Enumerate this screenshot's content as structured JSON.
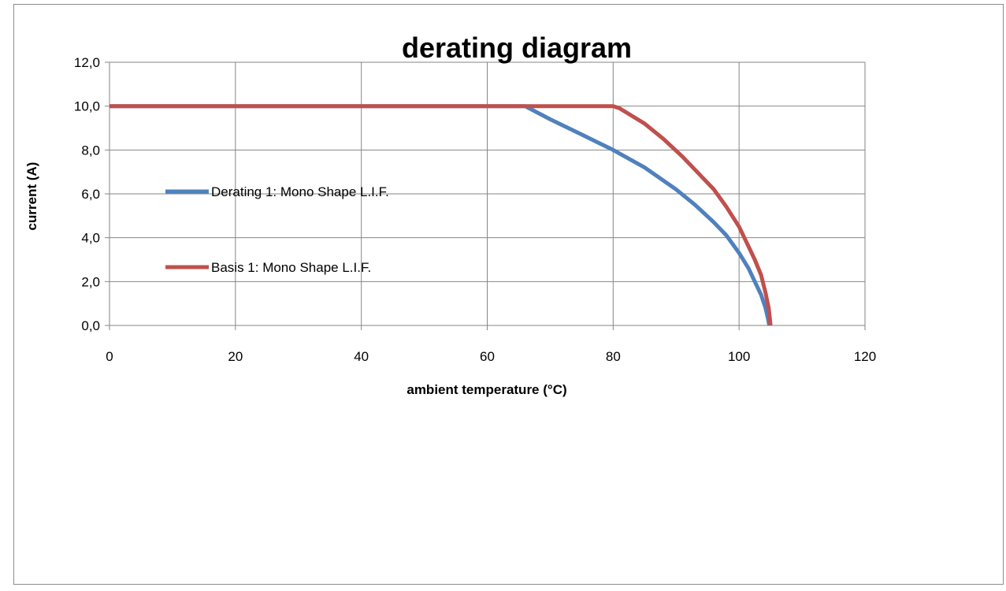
{
  "chart_data": {
    "type": "line",
    "title": "derating diagram",
    "xlabel": "ambient temperature (°C)",
    "ylabel": "current (A)",
    "xlim": [
      0,
      120
    ],
    "ylim": [
      0,
      12
    ],
    "x_ticks": [
      0,
      20,
      40,
      60,
      80,
      100,
      120
    ],
    "x_tick_labels": [
      "0",
      "20",
      "40",
      "60",
      "80",
      "100",
      "120"
    ],
    "y_ticks": [
      0,
      2,
      4,
      6,
      8,
      10,
      12
    ],
    "y_tick_labels": [
      "0,0",
      "2,0",
      "4,0",
      "6,0",
      "8,0",
      "10,0",
      "12,0"
    ],
    "grid": true,
    "legend_position": "left-inside",
    "series": [
      {
        "name": "Derating 1: Mono Shape L.I.F.",
        "color": "#4F81BD",
        "points": [
          [
            0,
            10
          ],
          [
            66,
            10
          ],
          [
            70,
            9.4
          ],
          [
            75,
            8.7
          ],
          [
            80,
            8.0
          ],
          [
            85,
            7.2
          ],
          [
            90,
            6.2
          ],
          [
            93,
            5.5
          ],
          [
            96,
            4.7
          ],
          [
            98,
            4.1
          ],
          [
            100,
            3.3
          ],
          [
            101.5,
            2.6
          ],
          [
            102.5,
            2.0
          ],
          [
            103.5,
            1.4
          ],
          [
            104.2,
            0.8
          ],
          [
            104.6,
            0.3
          ],
          [
            104.8,
            0
          ]
        ]
      },
      {
        "name": "Basis 1: Mono Shape L.I.F.",
        "color": "#C0504D",
        "points": [
          [
            0,
            10
          ],
          [
            80,
            10
          ],
          [
            81,
            9.9
          ],
          [
            85,
            9.2
          ],
          [
            88,
            8.5
          ],
          [
            91,
            7.7
          ],
          [
            94,
            6.8
          ],
          [
            96,
            6.2
          ],
          [
            98,
            5.4
          ],
          [
            100,
            4.5
          ],
          [
            101.5,
            3.6
          ],
          [
            102.5,
            3.0
          ],
          [
            103.5,
            2.3
          ],
          [
            104.2,
            1.5
          ],
          [
            104.7,
            0.8
          ],
          [
            104.9,
            0.3
          ],
          [
            105,
            0
          ]
        ]
      }
    ]
  }
}
